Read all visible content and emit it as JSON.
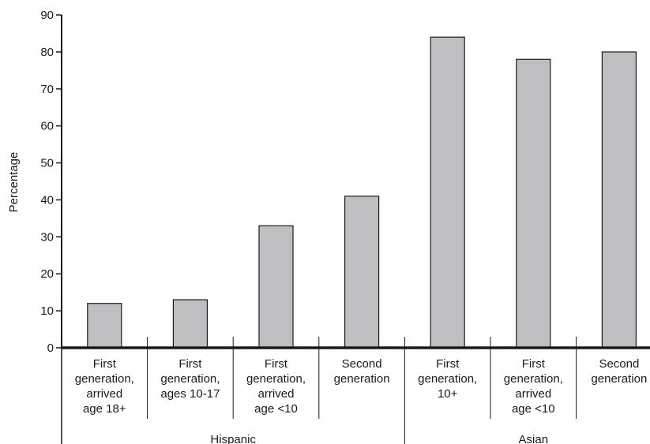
{
  "chart_data": {
    "type": "bar",
    "ylabel": "Percentage",
    "ylim": [
      0,
      90
    ],
    "yticks": [
      0,
      10,
      20,
      30,
      40,
      50,
      60,
      70,
      80,
      90
    ],
    "grid": false,
    "bar_color": "#bfbfc1",
    "bar_edge_color": "#1a1a1a",
    "categories": [
      [
        "First",
        "generation,",
        "arrived",
        "age 18+"
      ],
      [
        "First",
        "generation,",
        "ages 10-17"
      ],
      [
        "First",
        "generation,",
        "arrived",
        "age <10"
      ],
      [
        "Second",
        "generation"
      ],
      [
        "First",
        "generation,",
        "10+"
      ],
      [
        "First",
        "generation,",
        "arrived",
        "age <10"
      ],
      [
        "Second",
        "generation"
      ]
    ],
    "values": [
      12,
      13,
      33,
      41,
      84,
      78,
      80
    ],
    "groups": [
      {
        "label": "Hispanic",
        "start": 0,
        "end": 3
      },
      {
        "label": "Asian",
        "start": 4,
        "end": 6
      }
    ]
  }
}
